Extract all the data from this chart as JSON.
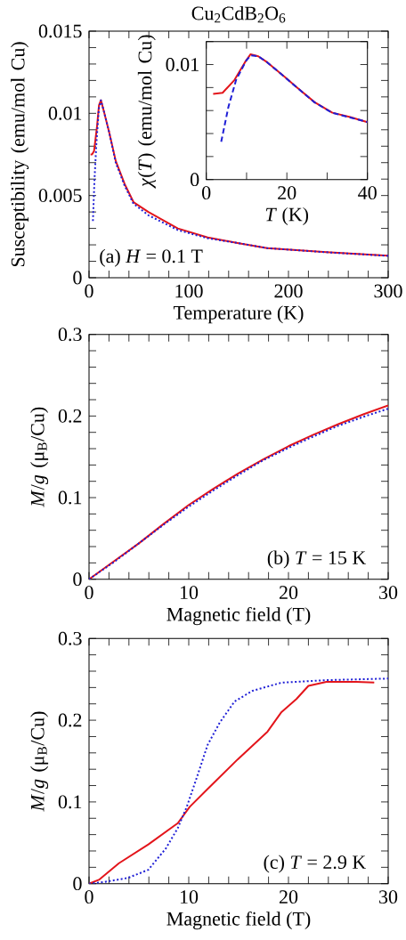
{
  "chart_data": [
    {
      "type": "line",
      "title": "Cu$_{2}$CdB$_{2}$O$_{6}$",
      "xlabel": "Temperature (K)",
      "ylabel": "Susceptibility (emu/mol Cu)",
      "annotations": [
        "(a) *H* = 0.1 T"
      ],
      "xlim": [
        0,
        300
      ],
      "ylim": [
        0,
        0.015
      ],
      "xticks": [
        0,
        {
          "value": 20,
          "label": null
        },
        {
          "value": 40,
          "label": null
        },
        {
          "value": 60,
          "label": null
        },
        {
          "value": 80,
          "label": null
        },
        100,
        {
          "value": 120,
          "label": null
        },
        {
          "value": 140,
          "label": null
        },
        {
          "value": 160,
          "label": null
        },
        {
          "value": 180,
          "label": null
        },
        200,
        {
          "value": 220,
          "label": null
        },
        {
          "value": 240,
          "label": null
        },
        {
          "value": 260,
          "label": null
        },
        {
          "value": 280,
          "label": null
        },
        300
      ],
      "yticks": [
        0,
        {
          "value": 0.001,
          "label": null
        },
        {
          "value": 0.002,
          "label": null
        },
        {
          "value": 0.003,
          "label": null
        },
        {
          "value": 0.004,
          "label": null
        },
        0.005,
        {
          "value": 0.006,
          "label": null
        },
        {
          "value": 0.007,
          "label": null
        },
        {
          "value": 0.008,
          "label": null
        },
        {
          "value": 0.009,
          "label": null
        },
        0.01,
        {
          "value": 0.011,
          "label": null
        },
        {
          "value": 0.012,
          "label": null
        },
        {
          "value": 0.013,
          "label": null
        },
        {
          "value": 0.014,
          "label": null
        },
        0.015
      ],
      "series": [
        {
          "color": "#e3151b",
          "line_style": "solid",
          "x": [
            1.5,
            3,
            5,
            8,
            10,
            11.9,
            15,
            20,
            26.8,
            35.7,
            44.6,
            59.5,
            89,
            119,
            150,
            178.6,
            238,
            300
          ],
          "values": [
            0.0075,
            0.0075,
            0.0077,
            0.0092,
            0.0105,
            0.0108,
            0.0101,
            0.0089,
            0.0071,
            0.0057,
            0.0046,
            0.004,
            0.003,
            0.00245,
            0.0021,
            0.0018,
            0.00155,
            0.00134
          ]
        },
        {
          "color": "#1f1fd6",
          "line_style": "dotted",
          "x": [
            3.9,
            5.5,
            7.4,
            9.9,
            11.9,
            15,
            20,
            26.8,
            35.7,
            44.6,
            59.5,
            89,
            119,
            150,
            178.6,
            238,
            300
          ],
          "values": [
            0.00345,
            0.006,
            0.0082,
            0.0103,
            0.0108,
            0.0101,
            0.0089,
            0.007,
            0.0056,
            0.0045,
            0.0038,
            0.0029,
            0.0024,
            0.0021,
            0.0018,
            0.00155,
            0.00133
          ]
        }
      ]
    },
    {
      "type": "line",
      "xlabel": "*T* (K)",
      "ylabel": "*χ*(*T*) (emu/mol Cu)",
      "xlim": [
        0,
        40
      ],
      "ylim": [
        0,
        0.012
      ],
      "xticks": [
        0,
        {
          "value": 10,
          "label": null
        },
        20,
        {
          "value": 30,
          "label": null
        },
        40
      ],
      "yticks": [
        0,
        {
          "value": 0.002,
          "label": null
        },
        {
          "value": 0.004,
          "label": null
        },
        {
          "value": 0.006,
          "label": null
        },
        {
          "value": 0.008,
          "label": null
        },
        0.01,
        {
          "value": 0.012,
          "label": null
        }
      ],
      "series": [
        {
          "color": "#e3151b",
          "line_style": "solid",
          "x": [
            1.7,
            4.05,
            7,
            9.6,
            11,
            12.9,
            15.1,
            19.5,
            22.5,
            26.9,
            31.3,
            35.7,
            40
          ],
          "values": [
            0.00744,
            0.00754,
            0.00866,
            0.0102,
            0.0109,
            0.01072,
            0.0102,
            0.00891,
            0.008,
            0.00672,
            0.00581,
            0.00543,
            0.00499
          ]
        },
        {
          "color": "#1f1fd6",
          "line_style": "dashed",
          "x": [
            3.7,
            5.5,
            7.4,
            9.9,
            11,
            12.9,
            15.1,
            19.5,
            22.5,
            26.9,
            31.3,
            35.7,
            40
          ],
          "values": [
            0.00328,
            0.00633,
            0.00866,
            0.01034,
            0.0108,
            0.01072,
            0.0102,
            0.0089,
            0.008,
            0.0067,
            0.0058,
            0.0054,
            0.005
          ]
        }
      ]
    },
    {
      "type": "line",
      "xlabel": "Magnetic field (T)",
      "ylabel": "*M*/*g* (μ$_{B}$/Cu)",
      "annotations": [
        "(b) *T* = 15 K"
      ],
      "xlim": [
        0,
        30
      ],
      "ylim": [
        0,
        0.3
      ],
      "xticks": [
        0,
        {
          "value": 2,
          "label": null
        },
        {
          "value": 4,
          "label": null
        },
        {
          "value": 6,
          "label": null
        },
        {
          "value": 8,
          "label": null
        },
        10,
        {
          "value": 12,
          "label": null
        },
        {
          "value": 14,
          "label": null
        },
        {
          "value": 16,
          "label": null
        },
        {
          "value": 18,
          "label": null
        },
        20,
        {
          "value": 22,
          "label": null
        },
        {
          "value": 24,
          "label": null
        },
        {
          "value": 26,
          "label": null
        },
        {
          "value": 28,
          "label": null
        },
        30
      ],
      "yticks": [
        0,
        {
          "value": 0.02,
          "label": null
        },
        {
          "value": 0.04,
          "label": null
        },
        {
          "value": 0.06,
          "label": null
        },
        {
          "value": 0.08,
          "label": null
        },
        0.1,
        {
          "value": 0.12,
          "label": null
        },
        {
          "value": 0.14,
          "label": null
        },
        {
          "value": 0.16,
          "label": null
        },
        {
          "value": 0.18,
          "label": null
        },
        0.2,
        {
          "value": 0.22,
          "label": null
        },
        {
          "value": 0.24,
          "label": null
        },
        {
          "value": 0.26,
          "label": null
        },
        {
          "value": 0.28,
          "label": null
        },
        0.3
      ],
      "series": [
        {
          "color": "#e3151b",
          "line_style": "solid",
          "x": [
            0,
            2.5,
            5,
            7.5,
            10,
            12.5,
            15,
            17.5,
            20,
            22.5,
            25,
            27.5,
            30
          ],
          "values": [
            0,
            0.022,
            0.044,
            0.068,
            0.091,
            0.111,
            0.13,
            0.147,
            0.163,
            0.177,
            0.19,
            0.202,
            0.213
          ]
        },
        {
          "color": "#1f1fd6",
          "line_style": "dotted",
          "x": [
            0,
            2.5,
            5,
            7.5,
            10,
            12.5,
            15,
            17.5,
            20,
            22.5,
            25,
            27.5,
            30
          ],
          "values": [
            0,
            0.021,
            0.044,
            0.067,
            0.089,
            0.109,
            0.128,
            0.146,
            0.161,
            0.175,
            0.188,
            0.199,
            0.209
          ]
        }
      ]
    },
    {
      "type": "line",
      "xlabel": "Magnetic field (T)",
      "ylabel": "*M*/*g* (μ$_{B}$/Cu)",
      "annotations": [
        "(c) *T* = 2.9 K"
      ],
      "xlim": [
        0,
        30
      ],
      "ylim": [
        0,
        0.3
      ],
      "xticks": [
        0,
        {
          "value": 2,
          "label": null
        },
        {
          "value": 4,
          "label": null
        },
        {
          "value": 6,
          "label": null
        },
        {
          "value": 8,
          "label": null
        },
        10,
        {
          "value": 12,
          "label": null
        },
        {
          "value": 14,
          "label": null
        },
        {
          "value": 16,
          "label": null
        },
        {
          "value": 18,
          "label": null
        },
        20,
        {
          "value": 22,
          "label": null
        },
        {
          "value": 24,
          "label": null
        },
        {
          "value": 26,
          "label": null
        },
        {
          "value": 28,
          "label": null
        },
        30
      ],
      "yticks": [
        0,
        {
          "value": 0.02,
          "label": null
        },
        {
          "value": 0.04,
          "label": null
        },
        {
          "value": 0.06,
          "label": null
        },
        {
          "value": 0.08,
          "label": null
        },
        0.1,
        {
          "value": 0.12,
          "label": null
        },
        {
          "value": 0.14,
          "label": null
        },
        {
          "value": 0.16,
          "label": null
        },
        {
          "value": 0.18,
          "label": null
        },
        0.2,
        {
          "value": 0.22,
          "label": null
        },
        {
          "value": 0.24,
          "label": null
        },
        {
          "value": 0.26,
          "label": null
        },
        {
          "value": 0.28,
          "label": null
        },
        0.3
      ],
      "series": [
        {
          "color": "#e3151b",
          "line_style": "solid",
          "x": [
            0,
            1.04,
            3,
            5.95,
            8.9,
            10.1,
            11.9,
            14.9,
            17.9,
            19.3,
            20.8,
            22,
            23.8,
            26.8,
            28.6
          ],
          "values": [
            0,
            0.005,
            0.025,
            0.048,
            0.074,
            0.094,
            0.116,
            0.152,
            0.186,
            0.21,
            0.226,
            0.242,
            0.247,
            0.247,
            0.246
          ]
        },
        {
          "color": "#1f1fd6",
          "line_style": "dotted",
          "x": [
            0,
            1.5,
            3.9,
            5.95,
            7.7,
            8.9,
            9.8,
            10.7,
            11.9,
            13.1,
            14.6,
            16.4,
            19.3,
            23.8,
            30
          ],
          "values": [
            0,
            0.002,
            0.007,
            0.017,
            0.043,
            0.068,
            0.094,
            0.126,
            0.17,
            0.197,
            0.223,
            0.236,
            0.246,
            0.249,
            0.251
          ]
        }
      ]
    }
  ]
}
